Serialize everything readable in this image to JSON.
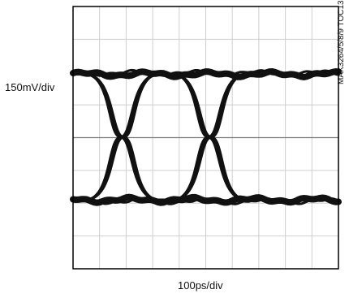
{
  "chart_data": {
    "type": "line",
    "title": "",
    "xlabel": "100ps/div",
    "ylabel": "150mV/div",
    "annotation": "MAX3264/5/8/9 TOC13",
    "grid": true,
    "grid_divisions": {
      "x": 10,
      "y": 8
    },
    "x_unit": "ps",
    "y_unit": "mV",
    "xlim": [
      0,
      1000
    ],
    "ylim": [
      -600,
      600
    ],
    "eye": {
      "high_level_mv": 290,
      "low_level_mv": -285,
      "crossings_ps": [
        185,
        515
      ],
      "unit_interval_ps": 330
    },
    "colors": {
      "trace": "#111111",
      "grid": "#cfcfcf",
      "axis": "#000000",
      "center_line": "#7a7a7a"
    }
  }
}
